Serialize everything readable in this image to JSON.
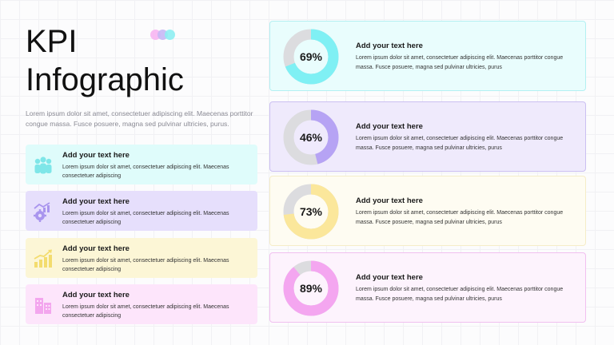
{
  "header": {
    "title": "KPI\nInfographic",
    "intro": "Lorem ipsum dolor sit amet, consectetuer adipiscing elit. Maecenas porttitor congue massa. Fusce posuere, magna sed pulvinar ultricies, purus.",
    "dot_colors": [
      "#f7b5f2",
      "#c7b8f5",
      "#8eeef2"
    ]
  },
  "left_cards": [
    {
      "title": "Add your text here",
      "text": "Lorem ipsum dolor sit amet, consectetuer adipiscing elit. Maecenas consectetuer adipiscing",
      "icon": "team-icon",
      "bg": "#dffcfb",
      "icon_color": "#7ee6e8"
    },
    {
      "title": "Add your text here",
      "text": "Lorem ipsum dolor sit amet, consectetuer adipiscing elit. Maecenas consectetuer adipiscing",
      "icon": "gear-chart-icon",
      "bg": "#e6dffc",
      "icon_color": "#a995ee"
    },
    {
      "title": "Add your text here",
      "text": "Lorem ipsum dolor sit amet, consectetuer adipiscing elit. Maecenas consectetuer adipiscing",
      "icon": "growth-chart-icon",
      "bg": "#fcf6d6",
      "icon_color": "#f3dc6e"
    },
    {
      "title": "Add your text here",
      "text": "Lorem ipsum dolor sit amet, consectetuer adipiscing elit. Maecenas consectetuer adipiscing",
      "icon": "buildings-icon",
      "bg": "#fde5fb",
      "icon_color": "#f3a6ee"
    }
  ],
  "kpis": [
    {
      "percent_label": "69%",
      "value": 0.69,
      "title": "Add your text here",
      "text": "Lorem ipsum dolor sit amet, consectetuer adipiscing elit. Maecenas porttitor congue massa. Fusce posuere, magna sed pulvinar ultricies, purus",
      "accent": "#7ff0f4",
      "bg": "#e9fdfd",
      "border": "#b3f0f2"
    },
    {
      "percent_label": "46%",
      "value": 0.46,
      "title": "Add your text here",
      "text": "Lorem ipsum dolor sit amet, consectetuer adipiscing elit. Maecenas porttitor congue massa. Fusce posuere, magna sed pulvinar ultricies, purus",
      "accent": "#b6a3f4",
      "bg": "#efeafc",
      "border": "#cbbff2"
    },
    {
      "percent_label": "73%",
      "value": 0.73,
      "title": "Add your text here",
      "text": "Lorem ipsum dolor sit amet, consectetuer adipiscing elit. Maecenas porttitor congue massa. Fusce posuere, magna sed pulvinar ultricies, purus",
      "accent": "#fbe79b",
      "bg": "#fefcf2",
      "border": "#f5edc8"
    },
    {
      "percent_label": "89%",
      "value": 0.89,
      "title": "Add your text here",
      "text": "Lorem ipsum dolor sit amet, consectetuer adipiscing elit. Maecenas porttitor congue massa. Fusce posuere, magna sed pulvinar ultricies, purus",
      "accent": "#f4a6f0",
      "bg": "#fdf3fd",
      "border": "#f1bff0"
    }
  ],
  "ring_track_color": "#dcdcdf"
}
